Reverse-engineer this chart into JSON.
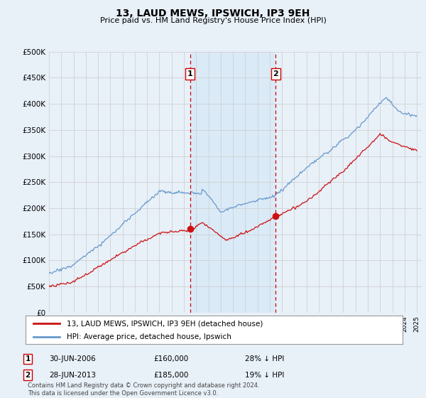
{
  "title": "13, LAUD MEWS, IPSWICH, IP3 9EH",
  "subtitle": "Price paid vs. HM Land Registry's House Price Index (HPI)",
  "ylim": [
    0,
    500000
  ],
  "yticks": [
    0,
    50000,
    100000,
    150000,
    200000,
    250000,
    300000,
    350000,
    400000,
    450000,
    500000
  ],
  "ytick_labels": [
    "£0",
    "£50K",
    "£100K",
    "£150K",
    "£200K",
    "£250K",
    "£300K",
    "£350K",
    "£400K",
    "£450K",
    "£500K"
  ],
  "hpi_color": "#6699cc",
  "price_color": "#cc1111",
  "vline_color": "#cc0000",
  "span_color": "#daeaf7",
  "purchase1": {
    "date": 2006.5,
    "price": 160000,
    "label": "1",
    "date_str": "30-JUN-2006",
    "price_str": "£160,000",
    "pct_str": "28% ↓ HPI"
  },
  "purchase2": {
    "date": 2013.5,
    "price": 185000,
    "label": "2",
    "date_str": "28-JUN-2013",
    "price_str": "£185,000",
    "pct_str": "19% ↓ HPI"
  },
  "legend_house_label": "13, LAUD MEWS, IPSWICH, IP3 9EH (detached house)",
  "legend_hpi_label": "HPI: Average price, detached house, Ipswich",
  "footer": "Contains HM Land Registry data © Crown copyright and database right 2024.\nThis data is licensed under the Open Government Licence v3.0.",
  "background_color": "#e8f0f8",
  "grid_color": "#cccccc"
}
